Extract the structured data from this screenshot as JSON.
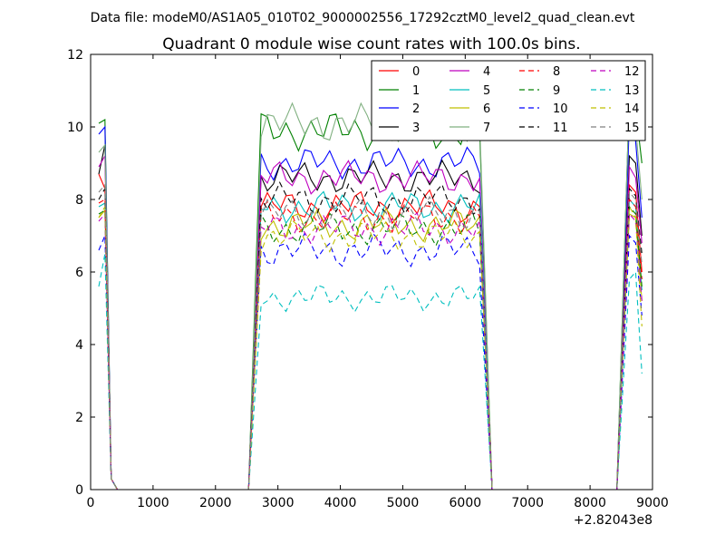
{
  "figure": {
    "suptitle": "Data file: modeM0/AS1A05_010T02_9000002556_17292cztM0_level2_quad_clean.evt",
    "title": "Quadrant 0 module wise count rates with 100.0s bins."
  },
  "chart_data": {
    "type": "line",
    "title": "Quadrant 0 module wise count rates with 100.0s bins.",
    "xlabel": "",
    "ylabel": "",
    "x_offset_label": "+2.82043e8",
    "xlim": [
      0,
      9000
    ],
    "ylim": [
      0,
      12
    ],
    "xticks": [
      "0",
      "1000",
      "2000",
      "3000",
      "4000",
      "5000",
      "6000",
      "7000",
      "8000",
      "9000"
    ],
    "yticks": [
      "0",
      "2",
      "4",
      "6",
      "8",
      "10",
      "12"
    ],
    "grid": false,
    "legend": {
      "placement": "top-right",
      "columns": 4
    },
    "segments": [
      {
        "x0": 130,
        "x1": 230
      },
      {
        "x0": 2730,
        "x1": 6230
      },
      {
        "x0": 8630,
        "x1": 8830
      }
    ],
    "drops": [
      {
        "from": 230,
        "to": 430
      },
      {
        "from": 2530,
        "to": 2730
      },
      {
        "from": 6230,
        "to": 6430
      },
      {
        "from": 8430,
        "to": 8630
      }
    ],
    "series": [
      {
        "name": "0",
        "color": "#ff0000",
        "dash": "solid",
        "seg1": [
          8.7,
          8.3
        ],
        "level": 7.8,
        "amp": 0.3,
        "phase": 0.0,
        "end": [
          8.4,
          8.2,
          6.0
        ]
      },
      {
        "name": "1",
        "color": "#008000",
        "dash": "solid",
        "seg1": [
          10.1,
          10.2
        ],
        "level": 9.9,
        "amp": 0.35,
        "phase": 0.8,
        "end": [
          10.9,
          10.5,
          9.0
        ]
      },
      {
        "name": "2",
        "color": "#0000ff",
        "dash": "solid",
        "seg1": [
          9.8,
          10.0
        ],
        "level": 9.0,
        "amp": 0.3,
        "phase": 1.6,
        "end": [
          10.2,
          9.6,
          7.5
        ]
      },
      {
        "name": "3",
        "color": "#000000",
        "dash": "solid",
        "seg1": [
          8.7,
          9.5
        ],
        "level": 8.6,
        "amp": 0.3,
        "phase": 2.4,
        "end": [
          9.2,
          9.0,
          7.0
        ]
      },
      {
        "name": "4",
        "color": "#bf00bf",
        "dash": "solid",
        "seg1": [
          8.9,
          9.2
        ],
        "level": 8.6,
        "amp": 0.3,
        "phase": 3.2,
        "end": [
          8.9,
          8.6,
          6.8
        ]
      },
      {
        "name": "5",
        "color": "#00bfbf",
        "dash": "solid",
        "seg1": [
          7.8,
          7.9
        ],
        "level": 7.8,
        "amp": 0.3,
        "phase": 4.0,
        "end": [
          8.0,
          7.8,
          5.5
        ]
      },
      {
        "name": "6",
        "color": "#bfbf00",
        "dash": "solid",
        "seg1": [
          7.5,
          7.7
        ],
        "level": 7.3,
        "amp": 0.3,
        "phase": 4.8,
        "end": [
          7.6,
          7.5,
          5.2
        ]
      },
      {
        "name": "7",
        "color": "#80b080",
        "dash": "solid",
        "seg1": [
          9.3,
          9.5
        ],
        "level": 10.1,
        "amp": 0.35,
        "phase": 5.6,
        "end": [
          10.9,
          10.0,
          8.0
        ]
      },
      {
        "name": "8",
        "color": "#ff0000",
        "dash": "dashed",
        "seg1": [
          7.9,
          8.0
        ],
        "level": 7.5,
        "amp": 0.3,
        "phase": 0.4,
        "end": [
          8.0,
          7.8,
          5.8
        ]
      },
      {
        "name": "9",
        "color": "#008000",
        "dash": "dashed",
        "seg1": [
          7.6,
          7.7
        ],
        "level": 7.2,
        "amp": 0.3,
        "phase": 1.2,
        "end": [
          7.8,
          7.6,
          5.6
        ]
      },
      {
        "name": "10",
        "color": "#0000ff",
        "dash": "dashed",
        "seg1": [
          6.6,
          7.0
        ],
        "level": 6.6,
        "amp": 0.3,
        "phase": 2.0,
        "end": [
          7.0,
          6.8,
          4.8
        ]
      },
      {
        "name": "11",
        "color": "#000000",
        "dash": "dashed",
        "seg1": [
          8.0,
          8.3
        ],
        "level": 8.0,
        "amp": 0.3,
        "phase": 2.8,
        "end": [
          8.3,
          8.1,
          6.5
        ]
      },
      {
        "name": "12",
        "color": "#bf00bf",
        "dash": "dashed",
        "seg1": [
          7.4,
          7.6
        ],
        "level": 7.2,
        "amp": 0.3,
        "phase": 3.6,
        "end": [
          7.6,
          7.4,
          5.2
        ]
      },
      {
        "name": "13",
        "color": "#00bfbf",
        "dash": "dashed",
        "seg1": [
          5.6,
          6.5
        ],
        "level": 5.3,
        "amp": 0.25,
        "phase": 4.4,
        "end": [
          5.8,
          6.0,
          3.2
        ]
      },
      {
        "name": "14",
        "color": "#bfbf00",
        "dash": "dashed",
        "seg1": [
          7.5,
          7.8
        ],
        "level": 7.0,
        "amp": 0.3,
        "phase": 5.2,
        "end": [
          7.8,
          7.5,
          4.5
        ]
      },
      {
        "name": "15",
        "color": "#808080",
        "dash": "dashed",
        "seg1": [
          8.2,
          8.4
        ],
        "level": 7.6,
        "amp": 0.3,
        "phase": 6.0,
        "end": [
          8.2,
          8.0,
          6.2
        ]
      }
    ]
  }
}
